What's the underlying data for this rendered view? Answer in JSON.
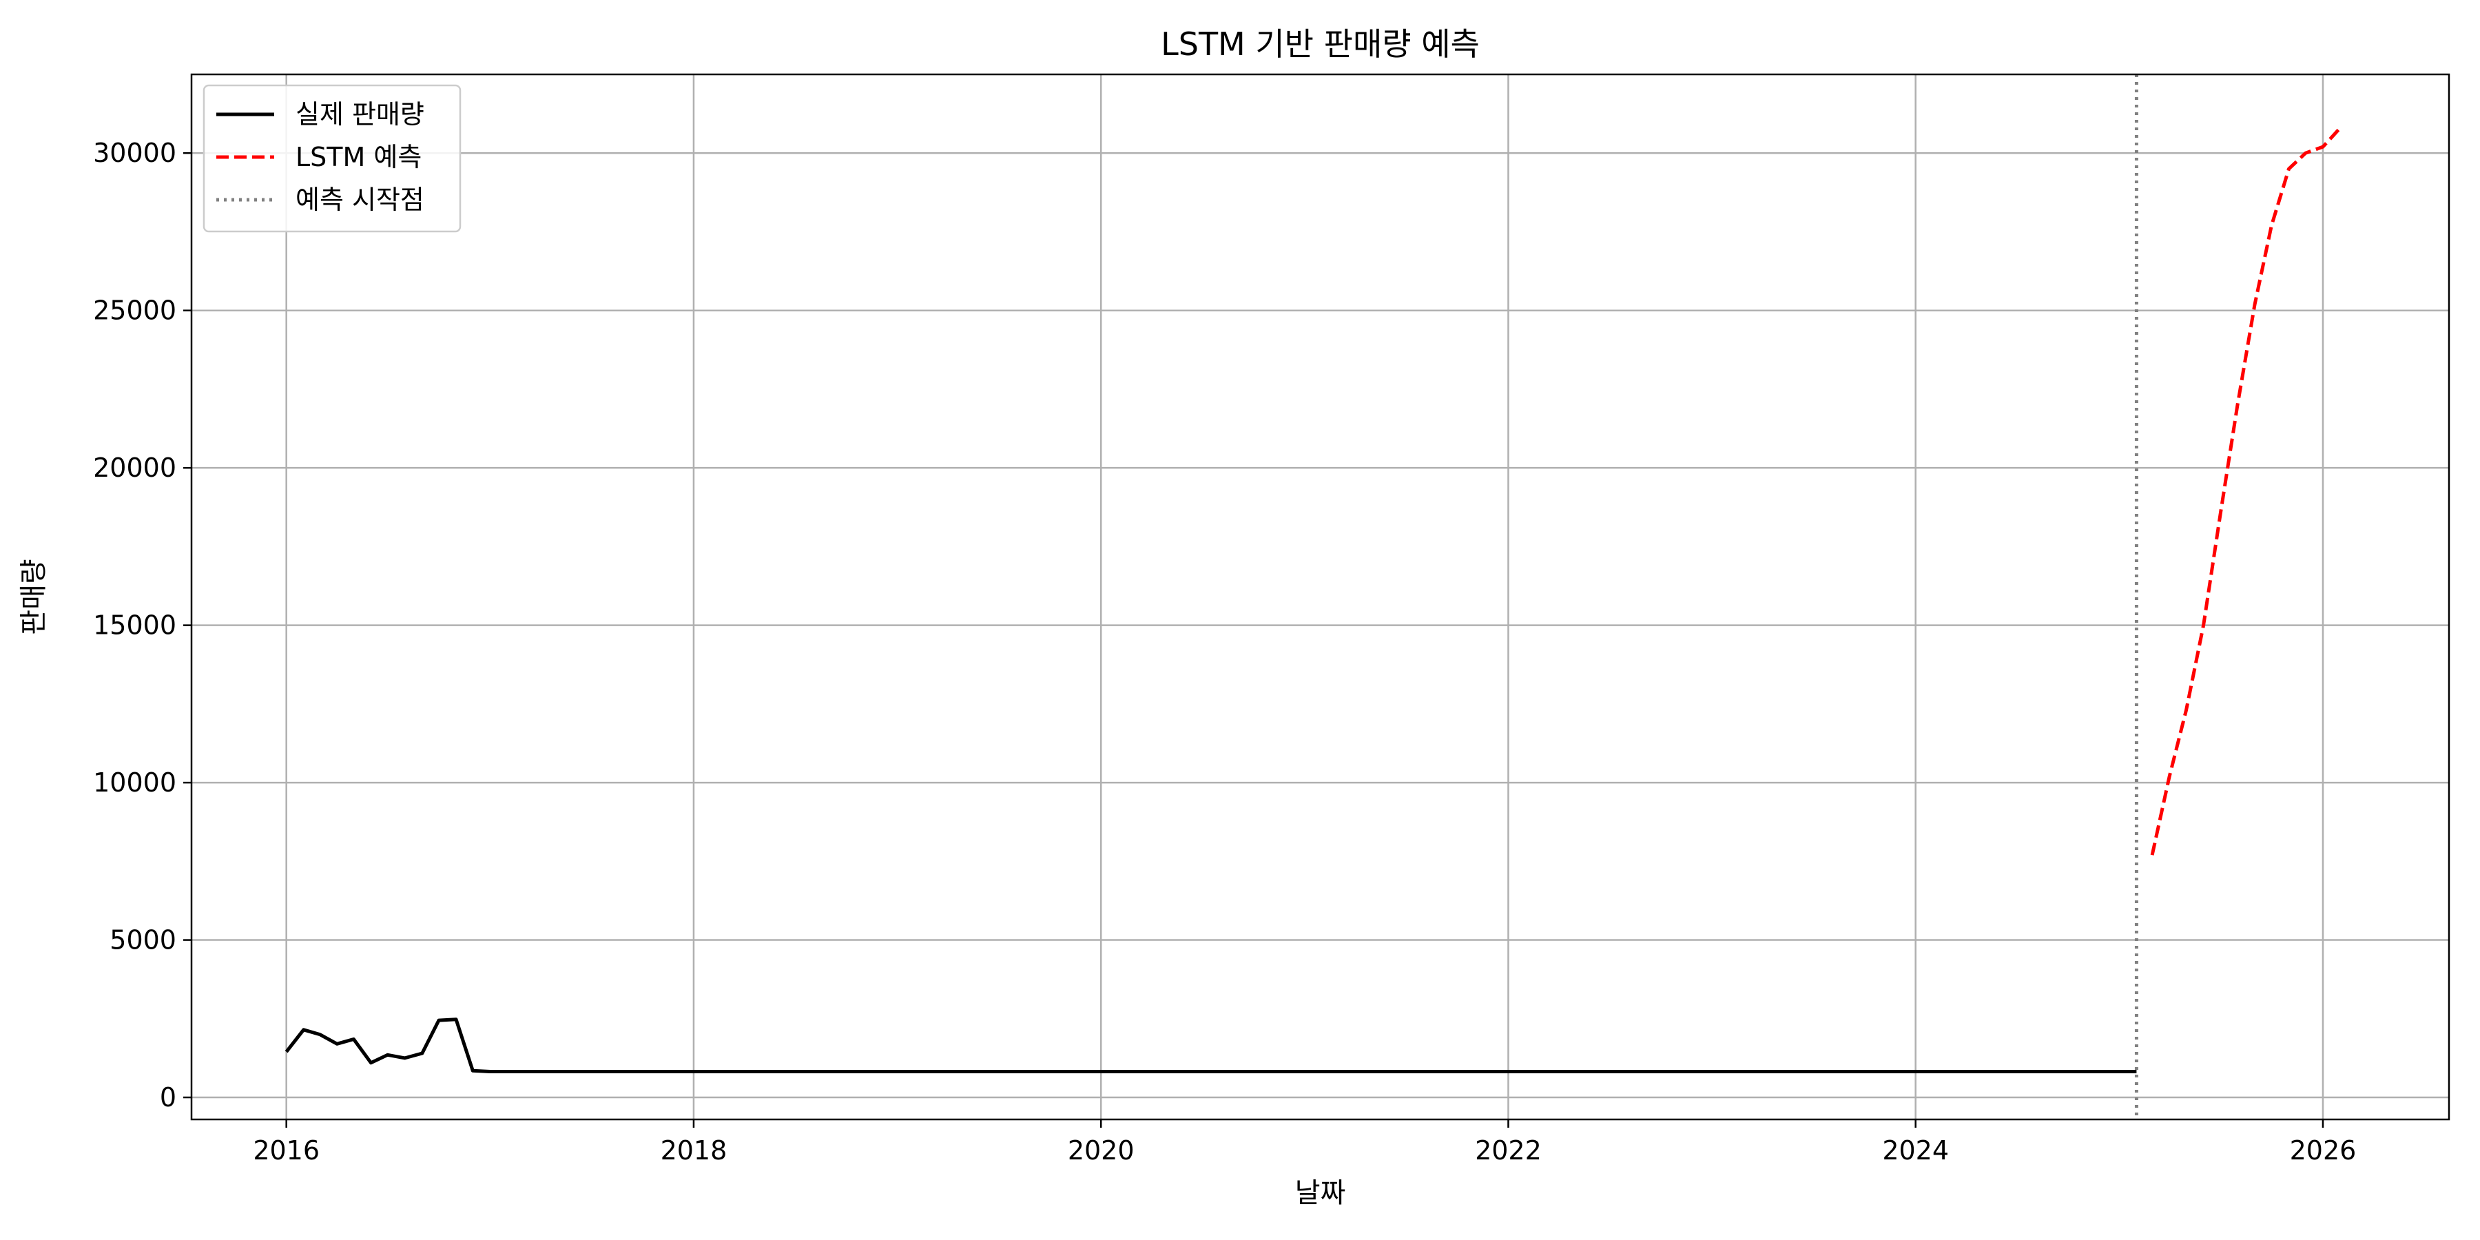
{
  "chart_data": {
    "type": "line",
    "title": "LSTM 기반 판매량 예측",
    "xlabel": "날짜",
    "ylabel": "판매량",
    "x_axis_type": "date",
    "xlim": [
      "2015-07-15",
      "2026-08-15"
    ],
    "ylim": [
      -700,
      32500
    ],
    "x_ticks": [
      "2016",
      "2018",
      "2020",
      "2022",
      "2024",
      "2026"
    ],
    "y_ticks": [
      0,
      5000,
      10000,
      15000,
      20000,
      25000,
      30000
    ],
    "grid": true,
    "legend_placement": "top-left",
    "series": [
      {
        "name": "실제 판매량",
        "color": "#000000",
        "style": "solid",
        "x": [
          "2016-01-01",
          "2016-02-01",
          "2016-03-01",
          "2016-04-01",
          "2016-05-01",
          "2016-06-01",
          "2016-07-01",
          "2016-08-01",
          "2016-09-01",
          "2016-10-01",
          "2016-11-01",
          "2016-12-01",
          "2017-01-01",
          "2018-01-01",
          "2019-01-01",
          "2020-01-01",
          "2021-01-01",
          "2022-01-01",
          "2023-01-01",
          "2024-01-01",
          "2025-01-01",
          "2025-02-01"
        ],
        "y": [
          1450,
          2150,
          2000,
          1700,
          1850,
          1100,
          1350,
          1250,
          1400,
          2450,
          2480,
          850,
          820,
          820,
          820,
          820,
          820,
          820,
          820,
          820,
          820,
          820
        ]
      },
      {
        "name": "LSTM 예측",
        "color": "#ff0000",
        "style": "dashed",
        "x": [
          "2025-03-01",
          "2025-04-01",
          "2025-05-01",
          "2025-06-01",
          "2025-07-01",
          "2025-08-01",
          "2025-09-01",
          "2025-10-01",
          "2025-11-01",
          "2025-12-01",
          "2026-01-01",
          "2026-02-01"
        ],
        "y": [
          7700,
          10200,
          12300,
          15000,
          18500,
          22000,
          25200,
          27700,
          29500,
          30000,
          30200,
          30800
        ]
      }
    ],
    "vlines": [
      {
        "name": "예측 시작점",
        "x": "2025-02-01",
        "color": "#808080",
        "style": "dotted"
      }
    ]
  }
}
